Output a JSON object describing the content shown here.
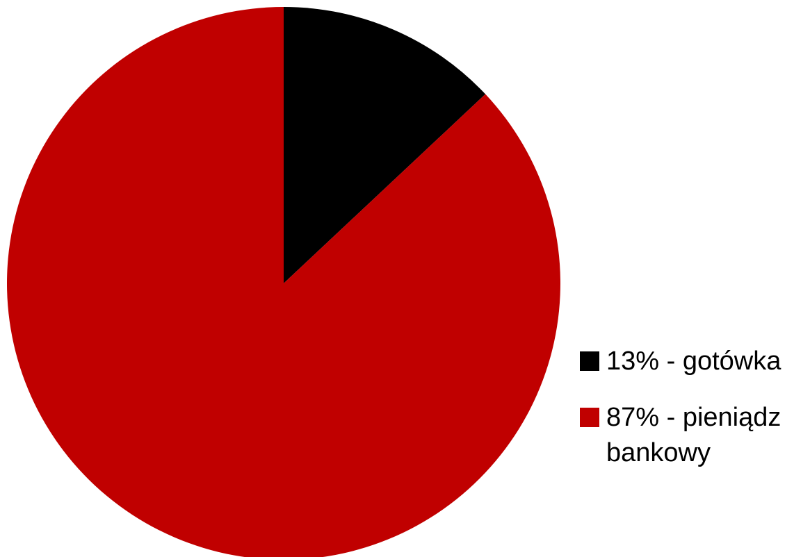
{
  "chart_data": {
    "type": "pie",
    "start_angle_deg": 0,
    "direction": "clockwise",
    "slices": [
      {
        "label": "13% - gotówka",
        "value": 13,
        "color": "#000000"
      },
      {
        "label": "87% - pieniądz bankowy",
        "value": 87,
        "color": "#c00000"
      }
    ],
    "legend_position": "right"
  }
}
